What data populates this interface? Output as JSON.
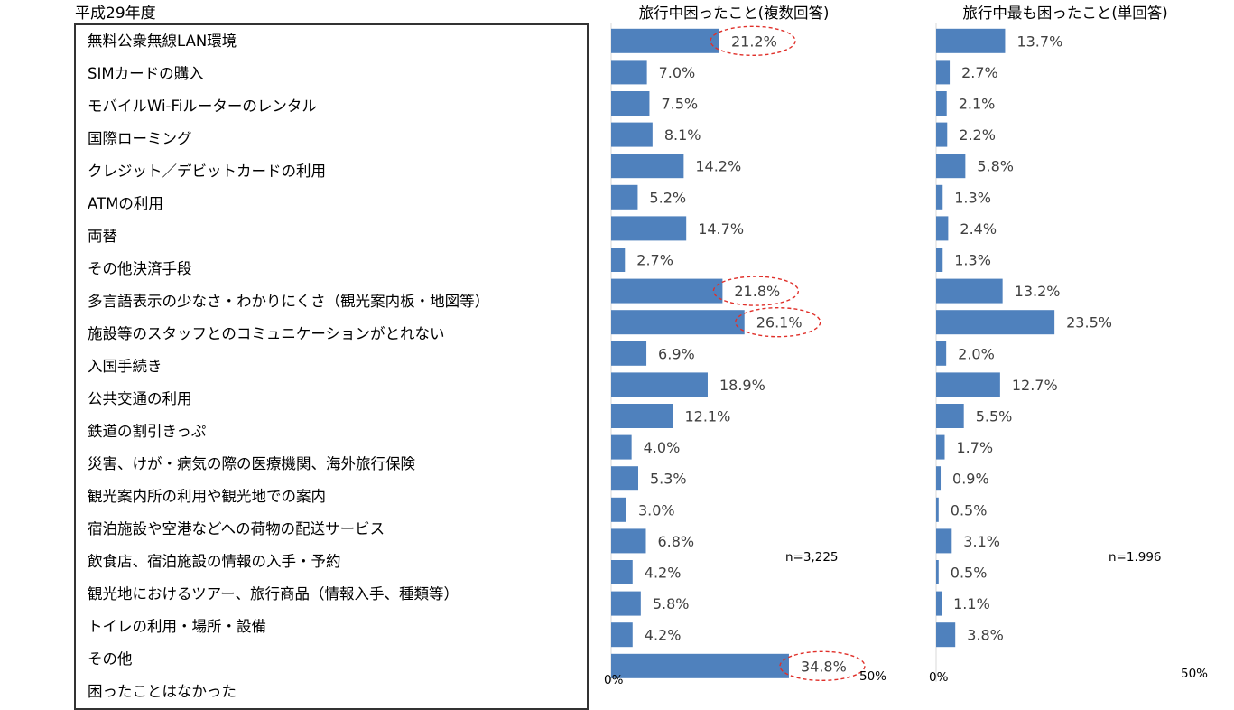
{
  "year_label": "平成29年度",
  "chart_data": [
    {
      "type": "bar",
      "orientation": "horizontal",
      "title": "旅行中困ったこと(複数回答)",
      "unit": "%",
      "xlim": [
        0,
        50
      ],
      "x_tick_labels": [
        "0%",
        "50%"
      ],
      "sample_size_label": "n=3,225",
      "categories": [
        "無料公衆無線LAN環境",
        "SIMカードの購入",
        "モバイルWi-Fiルーターのレンタル",
        "国際ローミング",
        "クレジット／デビットカードの利用",
        "ATMの利用",
        "両替",
        "その他決済手段",
        "多言語表示の少なさ・わかりにくさ（観光案内板・地図等）",
        "施設等のスタッフとのコミュニケーションがとれない",
        "入国手続き",
        "公共交通の利用",
        "鉄道の割引きっぷ",
        "災害、けが・病気の際の医療機関、海外旅行保険",
        "観光案内所の利用や観光地での案内",
        "宿泊施設や空港などへの荷物の配送サービス",
        "飲食店、宿泊施設の情報の入手・予約",
        "観光地におけるツアー、旅行商品（情報入手、種類等）",
        "トイレの利用・場所・設備",
        "その他",
        "困ったことはなかった"
      ],
      "values": [
        21.2,
        7.0,
        7.5,
        8.1,
        14.2,
        5.2,
        14.7,
        2.7,
        21.8,
        26.1,
        6.9,
        18.9,
        12.1,
        4.0,
        5.3,
        3.0,
        6.8,
        4.2,
        5.8,
        4.2,
        34.8
      ],
      "labels": [
        "21.2%",
        "7.0%",
        "7.5%",
        "8.1%",
        "14.2%",
        "5.2%",
        "14.7%",
        "2.7%",
        "21.8%",
        "26.1%",
        "6.9%",
        "18.9%",
        "12.1%",
        "4.0%",
        "5.3%",
        "3.0%",
        "6.8%",
        "4.2%",
        "5.8%",
        "4.2%",
        "34.8%"
      ],
      "highlighted": [
        0,
        8,
        9,
        20
      ],
      "bar_color": "#4f81bd",
      "highlight_color": "#e0302a"
    },
    {
      "type": "bar",
      "orientation": "horizontal",
      "title": "旅行中最も困ったこと(単回答)",
      "unit": "%",
      "xlim": [
        0,
        50
      ],
      "x_tick_labels": [
        "0%",
        "50%"
      ],
      "sample_size_label": "n=1.996",
      "categories": [
        "無料公衆無線LAN環境",
        "SIMカードの購入",
        "モバイルWi-Fiルーターのレンタル",
        "国際ローミング",
        "クレジット／デビットカードの利用",
        "ATMの利用",
        "両替",
        "その他決済手段",
        "多言語表示の少なさ・わかりにくさ（観光案内板・地図等）",
        "施設等のスタッフとのコミュニケーションがとれない",
        "入国手続き",
        "公共交通の利用",
        "鉄道の割引きっぷ",
        "災害、けが・病気の際の医療機関、海外旅行保険",
        "観光案内所の利用や観光地での案内",
        "宿泊施設や空港などへの荷物の配送サービス",
        "飲食店、宿泊施設の情報の入手・予約",
        "観光地におけるツアー、旅行商品（情報入手、種類等）",
        "トイレの利用・場所・設備",
        "その他",
        "困ったことはなかった"
      ],
      "values": [
        13.7,
        2.7,
        2.1,
        2.2,
        5.8,
        1.3,
        2.4,
        1.3,
        13.2,
        23.5,
        2.0,
        12.7,
        5.5,
        1.7,
        0.9,
        0.5,
        3.1,
        0.5,
        1.1,
        3.8,
        null
      ],
      "labels": [
        "13.7%",
        "2.7%",
        "2.1%",
        "2.2%",
        "5.8%",
        "1.3%",
        "2.4%",
        "1.3%",
        "13.2%",
        "23.5%",
        "2.0%",
        "12.7%",
        "5.5%",
        "1.7%",
        "0.9%",
        "0.5%",
        "3.1%",
        "0.5%",
        "1.1%",
        "3.8%",
        ""
      ],
      "highlighted": [],
      "bar_color": "#4f81bd"
    }
  ]
}
